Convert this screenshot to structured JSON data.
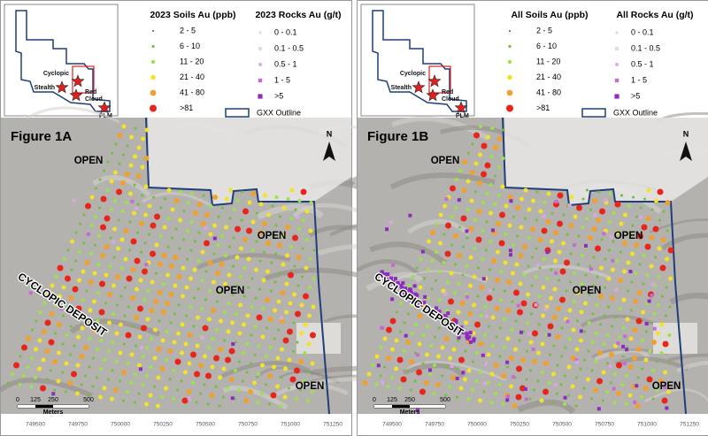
{
  "panels": [
    {
      "soils_legend": {
        "title": "2023 Soils Au (ppb)",
        "items": [
          {
            "label": "2 - 5",
            "color": "#2e6b2e"
          },
          {
            "label": "6 - 10",
            "color": "#6fbf3a"
          },
          {
            "label": "11 - 20",
            "color": "#9be34a"
          },
          {
            "label": "21 - 40",
            "color": "#f2e22a"
          },
          {
            "label": "41 - 80",
            "color": "#f0a030"
          },
          {
            "label": ">81",
            "color": "#e8251b"
          }
        ]
      },
      "rocks_legend": {
        "title": "2023 Rocks Au (g/t)",
        "items": [
          {
            "label": "0 - 0.1",
            "color": "#f4f4f4"
          },
          {
            "label": "0.1 - 0.5",
            "color": "#e8e0ea"
          },
          {
            "label": "0.5 - 1",
            "color": "#d9a8e0"
          },
          {
            "label": "1 - 5",
            "color": "#c86ad6"
          },
          {
            "label": ">5",
            "color": "#8e2bc2"
          }
        ]
      },
      "outline_label": "GXX Outline",
      "inset_labels": [
        "Cyclopic",
        "Stealth",
        "Red",
        "Cloud",
        "PLM"
      ],
      "figure_label": "Figure 1A",
      "open_labels": [
        "OPEN",
        "OPEN",
        "OPEN",
        "OPEN"
      ],
      "deposit_label": "CYCLOPIC DEPOSIT",
      "north": "N",
      "scale": {
        "ticks": [
          0,
          125,
          250,
          500
        ],
        "unit": "Meters"
      },
      "x_coords": [
        749500,
        749750,
        750000,
        750250,
        750500,
        750750,
        751000,
        751250
      ]
    },
    {
      "soils_legend": {
        "title": "All Soils Au (ppb)",
        "items": [
          {
            "label": "2 - 5",
            "color": "#2e6b2e"
          },
          {
            "label": "6 - 10",
            "color": "#6fbf3a"
          },
          {
            "label": "11 - 20",
            "color": "#9be34a"
          },
          {
            "label": "21 - 40",
            "color": "#f2e22a"
          },
          {
            "label": "41 - 80",
            "color": "#f0a030"
          },
          {
            "label": ">81",
            "color": "#e8251b"
          }
        ]
      },
      "rocks_legend": {
        "title": "All Rocks Au (g/t)",
        "items": [
          {
            "label": "0 - 0.1",
            "color": "#f4f4f4"
          },
          {
            "label": "0.1 - 0.5",
            "color": "#e8e0ea"
          },
          {
            "label": "0.5 - 1",
            "color": "#d9a8e0"
          },
          {
            "label": "1 - 5",
            "color": "#c86ad6"
          },
          {
            "label": ">5",
            "color": "#8e2bc2"
          }
        ]
      },
      "outline_label": "GXX Outline",
      "inset_labels": [
        "Cyclopic",
        "Stealth",
        "Red",
        "Cloud",
        "PLM"
      ],
      "figure_label": "Figure 1B",
      "open_labels": [
        "OPEN",
        "OPEN",
        "OPEN",
        "OPEN"
      ],
      "deposit_label": "CYCLOPIC DEPOSIT",
      "north": "N",
      "scale": {
        "ticks": [
          0,
          125,
          250,
          500
        ],
        "unit": "Meters"
      },
      "x_coords": [
        749500,
        749750,
        750000,
        750250,
        750500,
        750750,
        751000,
        751250
      ]
    }
  ]
}
